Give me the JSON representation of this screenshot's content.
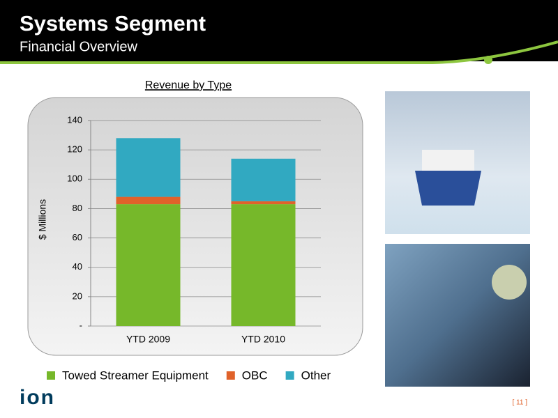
{
  "header": {
    "title": "Systems Segment",
    "subtitle": "Financial Overview"
  },
  "chart_data": {
    "type": "stacked_bar",
    "title": "Revenue by Type",
    "ylabel": "$ Millions",
    "categories": [
      "YTD 2009",
      "YTD 2010"
    ],
    "series": [
      {
        "name": "Towed Streamer Equipment",
        "color": "#76b82a",
        "values": [
          83,
          83
        ]
      },
      {
        "name": "OBC",
        "color": "#e0622a",
        "values": [
          5,
          2
        ]
      },
      {
        "name": "Other",
        "color": "#31a9c1",
        "values": [
          40,
          29
        ]
      }
    ],
    "ylim": [
      0,
      140
    ],
    "yticks": [
      {
        "value": 0,
        "label": "-"
      },
      20,
      40,
      60,
      80,
      100,
      120,
      140
    ],
    "grid": true,
    "legend": "bottom"
  },
  "footer": {
    "logo": "ion",
    "page": "[ 11 ]"
  }
}
